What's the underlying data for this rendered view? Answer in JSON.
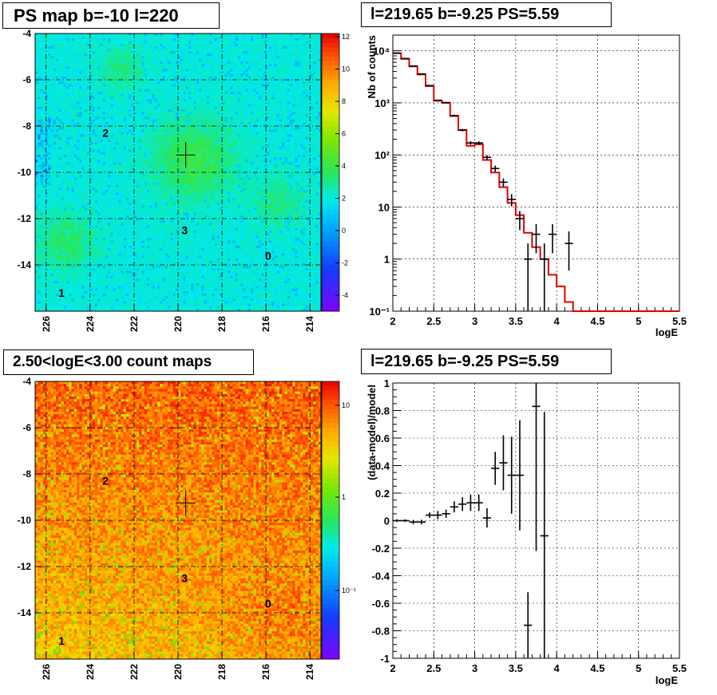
{
  "panels": {
    "ps_map": {
      "title": "PS map b=-10 l=220",
      "x_ticks": [
        226,
        224,
        222,
        220,
        218,
        216,
        214
      ],
      "y_ticks": [
        -4,
        -6,
        -8,
        -10,
        -12,
        -14
      ],
      "colorbar_ticks": [
        12,
        10,
        8,
        6,
        4,
        2,
        0,
        -2,
        -4
      ],
      "sources": [
        {
          "label": "2",
          "l": 223.3,
          "b": -8.3
        },
        {
          "label": "3",
          "l": 219.7,
          "b": -12.5
        },
        {
          "label": "0",
          "l": 215.9,
          "b": -13.6
        },
        {
          "label": "1",
          "l": 225.3,
          "b": -15.2
        }
      ],
      "marker": {
        "l": 219.65,
        "b": -9.25
      }
    },
    "count_map": {
      "title": "2.50<logE<3.00 count maps",
      "x_ticks": [
        226,
        224,
        222,
        220,
        218,
        216,
        214
      ],
      "y_ticks": [
        -4,
        -6,
        -8,
        -10,
        -12,
        -14
      ],
      "colorbar_ticks": [
        "10",
        "1",
        "10⁻¹"
      ],
      "sources": [
        {
          "label": "2",
          "l": 223.3,
          "b": -8.3
        },
        {
          "label": "3",
          "l": 219.7,
          "b": -12.5
        },
        {
          "label": "0",
          "l": 215.9,
          "b": -13.6
        },
        {
          "label": "1",
          "l": 225.3,
          "b": -15.2
        }
      ],
      "marker": {
        "l": 219.65,
        "b": -9.25
      }
    },
    "spectrum": {
      "title": "l=219.65 b=-9.25 PS=5.59"
    },
    "residual": {
      "title": "l=219.65 b=-9.25 PS=5.59"
    }
  },
  "chart_data": [
    {
      "type": "heatmap",
      "title": "PS map b=-10 l=220",
      "xlabel": "",
      "ylabel": "",
      "xlim": [
        226.5,
        213.5
      ],
      "ylim": [
        -16,
        -4
      ],
      "colorbar_range": [
        -5,
        12
      ],
      "grid": true
    },
    {
      "type": "line",
      "title": "l=219.65 b=-9.25 PS=5.59",
      "xlabel": "logE",
      "ylabel": "Nb of counts",
      "xlim": [
        2,
        5.5
      ],
      "ylim": [
        0.1,
        20000
      ],
      "log_y": true,
      "x_ticks": [
        2,
        2.5,
        3,
        3.5,
        4,
        4.5,
        5,
        5.5
      ],
      "y_tick_labels": [
        "10⁻¹",
        "1",
        "10",
        "10²",
        "10³",
        "10⁴"
      ],
      "grid": true,
      "model_color": "#e00000",
      "model_step": {
        "edges": [
          2.0,
          2.1,
          2.2,
          2.3,
          2.4,
          2.5,
          2.6,
          2.7,
          2.8,
          2.9,
          3.0,
          3.1,
          3.2,
          3.3,
          3.4,
          3.5,
          3.6,
          3.7,
          3.8,
          3.9,
          4.0,
          4.1,
          4.2,
          4.3,
          4.4,
          4.5,
          4.6,
          4.7,
          4.8,
          4.9,
          5.0,
          5.1,
          5.2,
          5.3,
          5.4,
          5.5
        ],
        "values": [
          9000,
          7000,
          5000,
          3500,
          2100,
          1100,
          1000,
          560,
          300,
          150,
          160,
          80,
          46,
          24,
          12,
          7,
          3.2,
          1.7,
          1.0,
          0.5,
          0.3,
          0.15,
          0.1,
          0.1,
          0.1,
          0.1,
          0.1,
          0.1,
          0.1,
          0.1,
          0.1,
          0.1,
          0.1,
          0.1,
          0.1
        ]
      },
      "data_points": {
        "x": [
          2.05,
          2.15,
          2.25,
          2.35,
          2.45,
          2.55,
          2.65,
          2.75,
          2.85,
          2.95,
          3.05,
          3.15,
          3.25,
          3.35,
          3.45,
          3.55,
          3.65,
          3.75,
          3.85,
          3.95,
          4.15
        ],
        "y": [
          9000,
          7100,
          5100,
          3600,
          2150,
          1120,
          1010,
          570,
          300,
          170,
          170,
          90,
          55,
          30,
          14,
          6,
          1,
          3,
          1,
          3,
          2
        ],
        "y_err": [
          95,
          84,
          71,
          60,
          46,
          33,
          32,
          24,
          17,
          13,
          13,
          9.5,
          7.4,
          5.5,
          3.7,
          2.4,
          1,
          1.7,
          1,
          1.7,
          1.4
        ]
      }
    },
    {
      "type": "heatmap",
      "title": "2.50<logE<3.00 count maps",
      "xlabel": "",
      "ylabel": "",
      "xlim": [
        226.5,
        213.5
      ],
      "ylim": [
        -16,
        -4
      ],
      "log_colorscale": true,
      "grid": true
    },
    {
      "type": "scatter",
      "title": "l=219.65 b=-9.25 PS=5.59",
      "xlabel": "logE",
      "ylabel": "(data-model)/model",
      "xlim": [
        2,
        5.5
      ],
      "ylim": [
        -1,
        1
      ],
      "x_ticks": [
        2,
        2.5,
        3,
        3.5,
        4,
        4.5,
        5,
        5.5
      ],
      "y_ticks": [
        1,
        0.8,
        0.6,
        0.4,
        0.2,
        0,
        -0.2,
        -0.4,
        -0.6,
        -0.8,
        -1
      ],
      "grid": true,
      "points": {
        "x": [
          2.05,
          2.15,
          2.25,
          2.35,
          2.45,
          2.55,
          2.65,
          2.75,
          2.85,
          2.95,
          3.05,
          3.15,
          3.25,
          3.35,
          3.45,
          3.55,
          3.65,
          3.75,
          3.85
        ],
        "y": [
          0,
          0,
          -0.01,
          -0.01,
          0.04,
          0.04,
          0.05,
          0.1,
          0.12,
          0.13,
          0.13,
          0.02,
          0.38,
          0.42,
          0.33,
          0.33,
          -0.76,
          0.83,
          -0.11
        ],
        "y_err": [
          0.01,
          0.01,
          0.015,
          0.017,
          0.02,
          0.03,
          0.03,
          0.04,
          0.05,
          0.06,
          0.06,
          0.07,
          0.12,
          0.2,
          0.28,
          0.4,
          0.24,
          1.05,
          0.9
        ]
      }
    }
  ]
}
